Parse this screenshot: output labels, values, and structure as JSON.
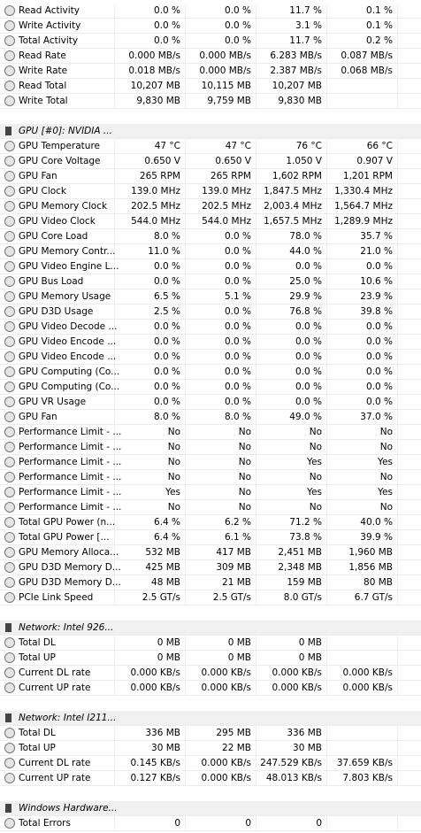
{
  "sections": [
    {
      "rows": [
        {
          "label": "Read Activity",
          "values": [
            "0.0 %",
            "0.0 %",
            "11.7 %",
            "0.1 %"
          ]
        },
        {
          "label": "Write Activity",
          "values": [
            "0.0 %",
            "0.0 %",
            "3.1 %",
            "0.1 %"
          ]
        },
        {
          "label": "Total Activity",
          "values": [
            "0.0 %",
            "0.0 %",
            "11.7 %",
            "0.2 %"
          ]
        },
        {
          "label": "Read Rate",
          "values": [
            "0.000 MB/s",
            "0.000 MB/s",
            "6.283 MB/s",
            "0.087 MB/s"
          ]
        },
        {
          "label": "Write Rate",
          "values": [
            "0.018 MB/s",
            "0.000 MB/s",
            "2.387 MB/s",
            "0.068 MB/s"
          ]
        },
        {
          "label": "Read Total",
          "values": [
            "10,207 MB",
            "10,115 MB",
            "10,207 MB"
          ]
        },
        {
          "label": "Write Total",
          "values": [
            "9,830 MB",
            "9,759 MB",
            "9,830 MB"
          ]
        }
      ]
    },
    {
      "title": "GPU [#0]: NVIDIA ...",
      "rows": [
        {
          "label": "GPU Temperature",
          "values": [
            "47 °C",
            "47 °C",
            "76 °C",
            "66 °C"
          ]
        },
        {
          "label": "GPU Core Voltage",
          "values": [
            "0.650 V",
            "0.650 V",
            "1.050 V",
            "0.907 V"
          ]
        },
        {
          "label": "GPU Fan",
          "values": [
            "265 RPM",
            "265 RPM",
            "1,602 RPM",
            "1,201 RPM"
          ]
        },
        {
          "label": "GPU Clock",
          "values": [
            "139.0 MHz",
            "139.0 MHz",
            "1,847.5 MHz",
            "1,330.4 MHz"
          ]
        },
        {
          "label": "GPU Memory Clock",
          "values": [
            "202.5 MHz",
            "202.5 MHz",
            "2,003.4 MHz",
            "1,564.7 MHz"
          ]
        },
        {
          "label": "GPU Video Clock",
          "values": [
            "544.0 MHz",
            "544.0 MHz",
            "1,657.5 MHz",
            "1,289.9 MHz"
          ]
        },
        {
          "label": "GPU Core Load",
          "values": [
            "8.0 %",
            "0.0 %",
            "78.0 %",
            "35.7 %"
          ]
        },
        {
          "label": "GPU Memory Contr...",
          "values": [
            "11.0 %",
            "0.0 %",
            "44.0 %",
            "21.0 %"
          ]
        },
        {
          "label": "GPU Video Engine L...",
          "values": [
            "0.0 %",
            "0.0 %",
            "0.0 %",
            "0.0 %"
          ]
        },
        {
          "label": "GPU Bus Load",
          "values": [
            "0.0 %",
            "0.0 %",
            "25.0 %",
            "10.6 %"
          ]
        },
        {
          "label": "GPU Memory Usage",
          "values": [
            "6.5 %",
            "5.1 %",
            "29.9 %",
            "23.9 %"
          ]
        },
        {
          "label": "GPU D3D Usage",
          "values": [
            "2.5 %",
            "0.0 %",
            "76.8 %",
            "39.8 %"
          ]
        },
        {
          "label": "GPU Video Decode ...",
          "values": [
            "0.0 %",
            "0.0 %",
            "0.0 %",
            "0.0 %"
          ]
        },
        {
          "label": "GPU Video Encode ...",
          "values": [
            "0.0 %",
            "0.0 %",
            "0.0 %",
            "0.0 %"
          ]
        },
        {
          "label": "GPU Video Encode ...",
          "values": [
            "0.0 %",
            "0.0 %",
            "0.0 %",
            "0.0 %"
          ]
        },
        {
          "label": "GPU Computing (Co...",
          "values": [
            "0.0 %",
            "0.0 %",
            "0.0 %",
            "0.0 %"
          ]
        },
        {
          "label": "GPU Computing (Co...",
          "values": [
            "0.0 %",
            "0.0 %",
            "0.0 %",
            "0.0 %"
          ]
        },
        {
          "label": "GPU VR Usage",
          "values": [
            "0.0 %",
            "0.0 %",
            "0.0 %",
            "0.0 %"
          ]
        },
        {
          "label": "GPU Fan",
          "values": [
            "8.0 %",
            "8.0 %",
            "49.0 %",
            "37.0 %"
          ]
        },
        {
          "label": "Performance Limit - ...",
          "values": [
            "No",
            "No",
            "No",
            "No"
          ]
        },
        {
          "label": "Performance Limit - ...",
          "values": [
            "No",
            "No",
            "No",
            "No"
          ]
        },
        {
          "label": "Performance Limit - ...",
          "values": [
            "No",
            "No",
            "Yes",
            "Yes"
          ]
        },
        {
          "label": "Performance Limit - ...",
          "values": [
            "No",
            "No",
            "No",
            "No"
          ]
        },
        {
          "label": "Performance Limit - ...",
          "values": [
            "Yes",
            "No",
            "Yes",
            "Yes"
          ]
        },
        {
          "label": "Performance Limit - ...",
          "values": [
            "No",
            "No",
            "No",
            "No"
          ]
        },
        {
          "label": "Total GPU Power (n...",
          "values": [
            "6.4 %",
            "6.2 %",
            "71.2 %",
            "40.0 %"
          ]
        },
        {
          "label": "Total GPU Power [...",
          "values": [
            "6.4 %",
            "6.1 %",
            "73.8 %",
            "39.9 %"
          ]
        },
        {
          "label": "GPU Memory Alloca...",
          "values": [
            "532 MB",
            "417 MB",
            "2,451 MB",
            "1,960 MB"
          ]
        },
        {
          "label": "GPU D3D Memory D...",
          "values": [
            "425 MB",
            "309 MB",
            "2,348 MB",
            "1,856 MB"
          ]
        },
        {
          "label": "GPU D3D Memory D...",
          "values": [
            "48 MB",
            "21 MB",
            "159 MB",
            "80 MB"
          ]
        },
        {
          "label": "PCIe Link Speed",
          "values": [
            "2.5 GT/s",
            "2.5 GT/s",
            "8.0 GT/s",
            "6.7 GT/s"
          ]
        }
      ]
    },
    {
      "title": "Network: Intel 926...",
      "rows": [
        {
          "label": "Total DL",
          "values": [
            "0 MB",
            "0 MB",
            "0 MB"
          ]
        },
        {
          "label": "Total UP",
          "values": [
            "0 MB",
            "0 MB",
            "0 MB"
          ]
        },
        {
          "label": "Current DL rate",
          "values": [
            "0.000 KB/s",
            "0.000 KB/s",
            "0.000 KB/s",
            "0.000 KB/s"
          ]
        },
        {
          "label": "Current UP rate",
          "values": [
            "0.000 KB/s",
            "0.000 KB/s",
            "0.000 KB/s",
            "0.000 KB/s"
          ]
        }
      ]
    },
    {
      "title": "Network: Intel I211...",
      "rows": [
        {
          "label": "Total DL",
          "values": [
            "336 MB",
            "295 MB",
            "336 MB"
          ]
        },
        {
          "label": "Total UP",
          "values": [
            "30 MB",
            "22 MB",
            "30 MB"
          ]
        },
        {
          "label": "Current DL rate",
          "values": [
            "0.145 KB/s",
            "0.000 KB/s",
            "247.529 KB/s",
            "37.659 KB/s"
          ]
        },
        {
          "label": "Current UP rate",
          "values": [
            "0.127 KB/s",
            "0.000 KB/s",
            "48.013 KB/s",
            "7.803 KB/s"
          ]
        }
      ]
    },
    {
      "title": "Windows Hardware...",
      "rows": [
        {
          "label": "Total Errors",
          "values": [
            "0",
            "0",
            "0"
          ]
        }
      ]
    }
  ]
}
